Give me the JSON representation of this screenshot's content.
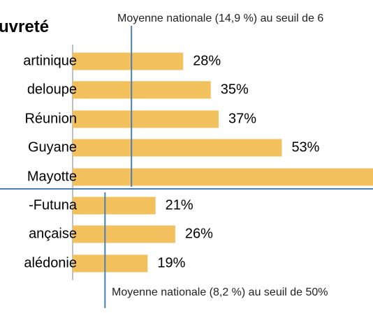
{
  "chart_data": {
    "type": "bar",
    "orientation": "horizontal",
    "title": "uvreté",
    "categories": [
      "artinique",
      "deloupe",
      "Réunion",
      "Guyane",
      "Mayotte",
      "-Futuna",
      "ançaise",
      "alédonie"
    ],
    "values": [
      28,
      35,
      37,
      53,
      77,
      21,
      26,
      19
    ],
    "value_labels": [
      "28%",
      "35%",
      "37%",
      "53%",
      "",
      "21%",
      "26%",
      "19%"
    ],
    "xlim": [
      0,
      76
    ],
    "bar_color": "#F2C15E",
    "groups": [
      {
        "first": 0,
        "last": 4,
        "reference_value": 14.9,
        "annotation": "Moyenne nationale (14,9 %) au seuil de 6"
      },
      {
        "first": 5,
        "last": 7,
        "reference_value": 8.2,
        "annotation": "Moyenne nationale (8,2 %) au seuil de 50%"
      }
    ],
    "reference_line_color": "#4A7FB5",
    "separator_color": "#4A7FB5"
  }
}
